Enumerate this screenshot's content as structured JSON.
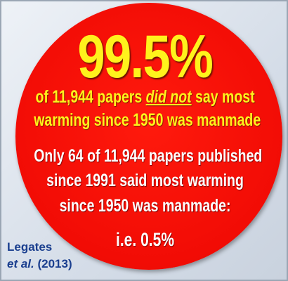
{
  "headline": "99.5%",
  "statement": {
    "before": "of 11,944 papers",
    "emphasis": "did not",
    "after": "say most",
    "line2": "warming since 1950 was manmade"
  },
  "detail": {
    "lines": [
      "Only 64 of 11,944 papers published",
      "since 1991 said most warming",
      "since 1950 was manmade:",
      "i.e. 0.5%"
    ]
  },
  "source": {
    "author": "Legates",
    "etal": "et al.",
    "year": "(2013)"
  }
}
